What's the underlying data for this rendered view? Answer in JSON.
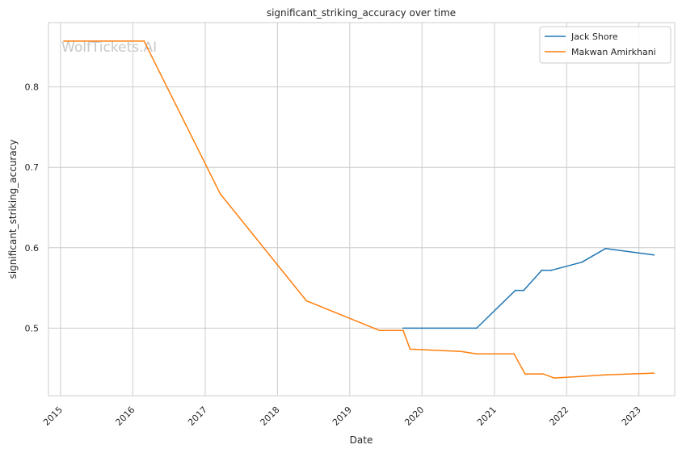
{
  "chart_data": {
    "type": "line",
    "title": "significant_striking_accuracy over time",
    "xlabel": "Date",
    "ylabel": "significant_striking_accuracy",
    "watermark": "WolfTickets.AI",
    "x_ticks": [
      "2015",
      "2016",
      "2017",
      "2018",
      "2019",
      "2020",
      "2021",
      "2022",
      "2023"
    ],
    "y_ticks": [
      "0.5",
      "0.6",
      "0.7",
      "0.8"
    ],
    "xlim": [
      "2014-11-01",
      "2023-07-01"
    ],
    "ylim": [
      0.416,
      0.88
    ],
    "grid": true,
    "legend_position": "top-right",
    "series": [
      {
        "name": "Jack Shore",
        "color": "#1f77b4",
        "points": [
          [
            "2019-09-28",
            0.5
          ],
          [
            "2020-10-03",
            0.5
          ],
          [
            "2021-04-17",
            0.547
          ],
          [
            "2021-05-29",
            0.547
          ],
          [
            "2021-08-28",
            0.572
          ],
          [
            "2021-10-16",
            0.572
          ],
          [
            "2022-03-19",
            0.582
          ],
          [
            "2022-07-16",
            0.599
          ],
          [
            "2023-03-18",
            0.591
          ]
        ]
      },
      {
        "name": "Makwan Amirkhani",
        "color": "#ff7f0e",
        "points": [
          [
            "2015-01-18",
            0.857
          ],
          [
            "2016-02-27",
            0.857
          ],
          [
            "2017-03-18",
            0.667
          ],
          [
            "2018-05-27",
            0.534
          ],
          [
            "2019-06-01",
            0.497
          ],
          [
            "2019-09-28",
            0.497
          ],
          [
            "2019-11-02",
            0.474
          ],
          [
            "2020-07-16",
            0.471
          ],
          [
            "2020-10-03",
            0.468
          ],
          [
            "2021-04-10",
            0.468
          ],
          [
            "2021-06-05",
            0.443
          ],
          [
            "2021-09-04",
            0.443
          ],
          [
            "2021-10-30",
            0.438
          ],
          [
            "2022-03-19",
            0.44
          ],
          [
            "2022-07-23",
            0.442
          ],
          [
            "2023-03-18",
            0.444
          ]
        ]
      }
    ]
  }
}
